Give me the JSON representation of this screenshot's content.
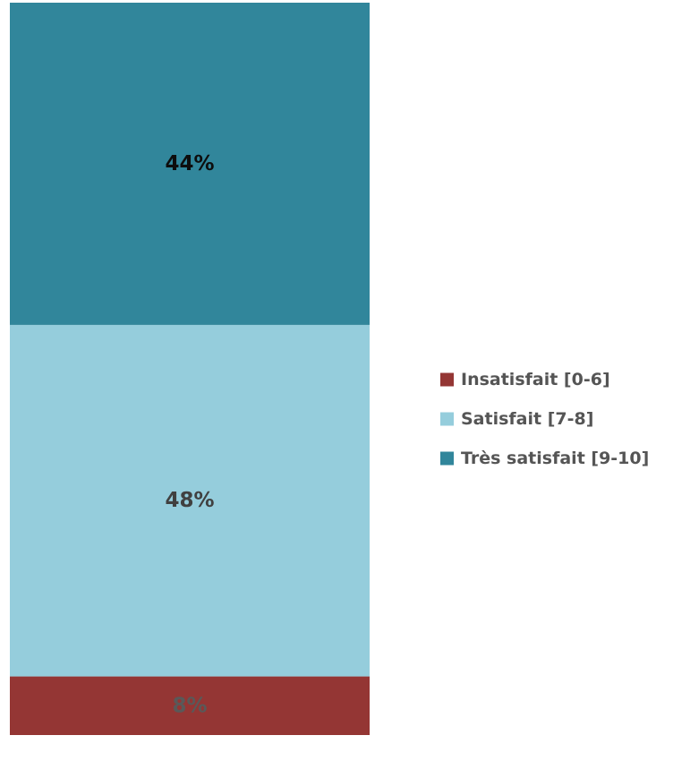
{
  "chart_data": {
    "type": "bar",
    "stacked": true,
    "orientation": "vertical",
    "categories": [
      ""
    ],
    "series": [
      {
        "name": "Insatisfait [0-6]",
        "values": [
          8
        ],
        "label": "8%",
        "color": "#943634",
        "label_color": "#595959"
      },
      {
        "name": "Satisfait [7-8]",
        "values": [
          48
        ],
        "label": "48%",
        "color": "#95cddc",
        "label_color": "#404040"
      },
      {
        "name": "Très satisfait [9-10]",
        "values": [
          44
        ],
        "label": "44%",
        "color": "#31869b",
        "label_color": "#0d0d0d"
      }
    ],
    "ylim": [
      0,
      100
    ],
    "unit": "%",
    "grid": false,
    "legend_position": "right"
  }
}
